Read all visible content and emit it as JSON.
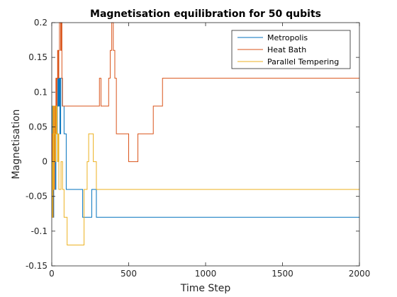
{
  "chart_data": {
    "type": "line",
    "title": "Magnetisation equilibration for 50 qubits",
    "xlabel": "Time Step",
    "ylabel": "Magnetisation",
    "xlim": [
      0,
      2000
    ],
    "ylim": [
      -0.15,
      0.2
    ],
    "x_ticks": [
      0,
      500,
      1000,
      1500,
      2000
    ],
    "x_tick_labels": [
      "0",
      "500",
      "1000",
      "1500",
      "2000"
    ],
    "y_ticks": [
      -0.15,
      -0.1,
      -0.05,
      0,
      0.05,
      0.1,
      0.15,
      0.2
    ],
    "y_tick_labels": [
      "-0.15",
      "-0.1",
      "-0.05",
      "0",
      "0.05",
      "0.1",
      "0.15",
      "0.2"
    ],
    "grid": false,
    "legend_position": "top-right",
    "series": [
      {
        "name": "Metropolis",
        "color": "#0072bd",
        "x": [
          0,
          4,
          6,
          9,
          11,
          13,
          16,
          19,
          21,
          24,
          27,
          30,
          33,
          36,
          40,
          44,
          48,
          53,
          58,
          63,
          68,
          73,
          80,
          88,
          94,
          100,
          150,
          200,
          201,
          240,
          245,
          260,
          285,
          290,
          300,
          500,
          1000,
          1500,
          2000
        ],
        "y": [
          0,
          0.08,
          -0.04,
          0.08,
          -0.08,
          0.08,
          0,
          0.04,
          0.08,
          -0.04,
          0.04,
          0.08,
          0.04,
          0.08,
          0.12,
          0.08,
          0.12,
          0.04,
          0.12,
          0.12,
          0.08,
          0.08,
          0.04,
          0.04,
          -0.04,
          -0.04,
          -0.04,
          -0.04,
          -0.08,
          -0.08,
          -0.08,
          -0.04,
          -0.04,
          -0.08,
          -0.08,
          -0.08,
          -0.08,
          -0.08,
          -0.08
        ]
      },
      {
        "name": "Heat Bath",
        "color": "#d95319",
        "x": [
          0,
          3,
          6,
          9,
          12,
          15,
          18,
          21,
          24,
          27,
          30,
          34,
          38,
          42,
          46,
          50,
          54,
          58,
          62,
          66,
          70,
          80,
          90,
          100,
          150,
          200,
          250,
          300,
          310,
          320,
          325,
          340,
          370,
          380,
          390,
          395,
          400,
          410,
          420,
          440,
          460,
          500,
          520,
          540,
          560,
          600,
          640,
          660,
          700,
          720,
          1000,
          1500,
          2000
        ],
        "y": [
          0,
          0.04,
          -0.08,
          0.04,
          0.08,
          -0.04,
          0.04,
          0.08,
          0.04,
          0.12,
          0.08,
          0.12,
          0.16,
          0.12,
          0.16,
          0.2,
          0.2,
          0.16,
          0.2,
          0.12,
          0.08,
          0.08,
          0.08,
          0.08,
          0.08,
          0.08,
          0.08,
          0.08,
          0.12,
          0.08,
          0.08,
          0.08,
          0.12,
          0.16,
          0.2,
          0.2,
          0.16,
          0.12,
          0.04,
          0.04,
          0.04,
          0,
          0,
          0,
          0.04,
          0.04,
          0.04,
          0.08,
          0.08,
          0.12,
          0.12,
          0.12,
          0.12
        ]
      },
      {
        "name": "Parallel Tempering",
        "color": "#edb120",
        "x": [
          0,
          4,
          7,
          10,
          14,
          18,
          22,
          26,
          30,
          34,
          38,
          42,
          46,
          50,
          60,
          70,
          80,
          90,
          100,
          110,
          150,
          200,
          210,
          230,
          240,
          260,
          270,
          290,
          300,
          500,
          1000,
          1500,
          2000
        ],
        "y": [
          0,
          -0.08,
          0.08,
          -0.04,
          0.04,
          0.08,
          0,
          0.04,
          0.08,
          0.04,
          0,
          0.04,
          -0.04,
          -0.04,
          0,
          -0.04,
          -0.08,
          -0.08,
          -0.12,
          -0.12,
          -0.12,
          -0.12,
          -0.04,
          0,
          0.04,
          0.04,
          0,
          -0.04,
          -0.04,
          -0.04,
          -0.04,
          -0.04,
          -0.04
        ]
      }
    ]
  }
}
